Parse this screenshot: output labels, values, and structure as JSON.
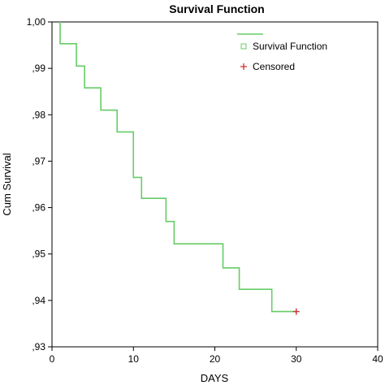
{
  "chart_data": {
    "type": "line",
    "title": "Survival Function",
    "xlabel": "DAYS",
    "ylabel": "Cum Survival",
    "xlim": [
      0,
      40
    ],
    "ylim": [
      0.93,
      1.0
    ],
    "x_ticks": [
      0,
      10,
      20,
      30,
      40
    ],
    "x_tick_labels": [
      "0",
      "10",
      "20",
      "30",
      "40"
    ],
    "y_ticks": [
      0.93,
      0.94,
      0.95,
      0.96,
      0.97,
      0.98,
      0.99,
      1.0
    ],
    "y_tick_labels": [
      ",93",
      ",94",
      ",95",
      ",96",
      ",97",
      ",98",
      ",99",
      "1,00"
    ],
    "grid": false,
    "legend_position": "top-right",
    "legend": [
      {
        "label": "Survival Function",
        "marker": "square",
        "color": "#66cc66"
      },
      {
        "label": "Censored",
        "marker": "plus",
        "color": "#cc3333"
      }
    ],
    "series": [
      {
        "name": "Survival Function",
        "color": "#66cc66",
        "step": true,
        "points": [
          {
            "x": 1,
            "y": 1.0
          },
          {
            "x": 1,
            "y": 0.9953
          },
          {
            "x": 3,
            "y": 0.9953
          },
          {
            "x": 3,
            "y": 0.9905
          },
          {
            "x": 4,
            "y": 0.9905
          },
          {
            "x": 4,
            "y": 0.9858
          },
          {
            "x": 6,
            "y": 0.9858
          },
          {
            "x": 6,
            "y": 0.981
          },
          {
            "x": 8,
            "y": 0.981
          },
          {
            "x": 8,
            "y": 0.9763
          },
          {
            "x": 10,
            "y": 0.9763
          },
          {
            "x": 10,
            "y": 0.9665
          },
          {
            "x": 11,
            "y": 0.9665
          },
          {
            "x": 11,
            "y": 0.962
          },
          {
            "x": 14,
            "y": 0.962
          },
          {
            "x": 14,
            "y": 0.957
          },
          {
            "x": 15,
            "y": 0.957
          },
          {
            "x": 15,
            "y": 0.9522
          },
          {
            "x": 21,
            "y": 0.9522
          },
          {
            "x": 21,
            "y": 0.947
          },
          {
            "x": 23,
            "y": 0.947
          },
          {
            "x": 23,
            "y": 0.9424
          },
          {
            "x": 27,
            "y": 0.9424
          },
          {
            "x": 27,
            "y": 0.9376
          },
          {
            "x": 30,
            "y": 0.9376
          }
        ]
      }
    ],
    "censored": [
      {
        "x": 30,
        "y": 0.9376,
        "color": "#cc3333"
      }
    ]
  }
}
